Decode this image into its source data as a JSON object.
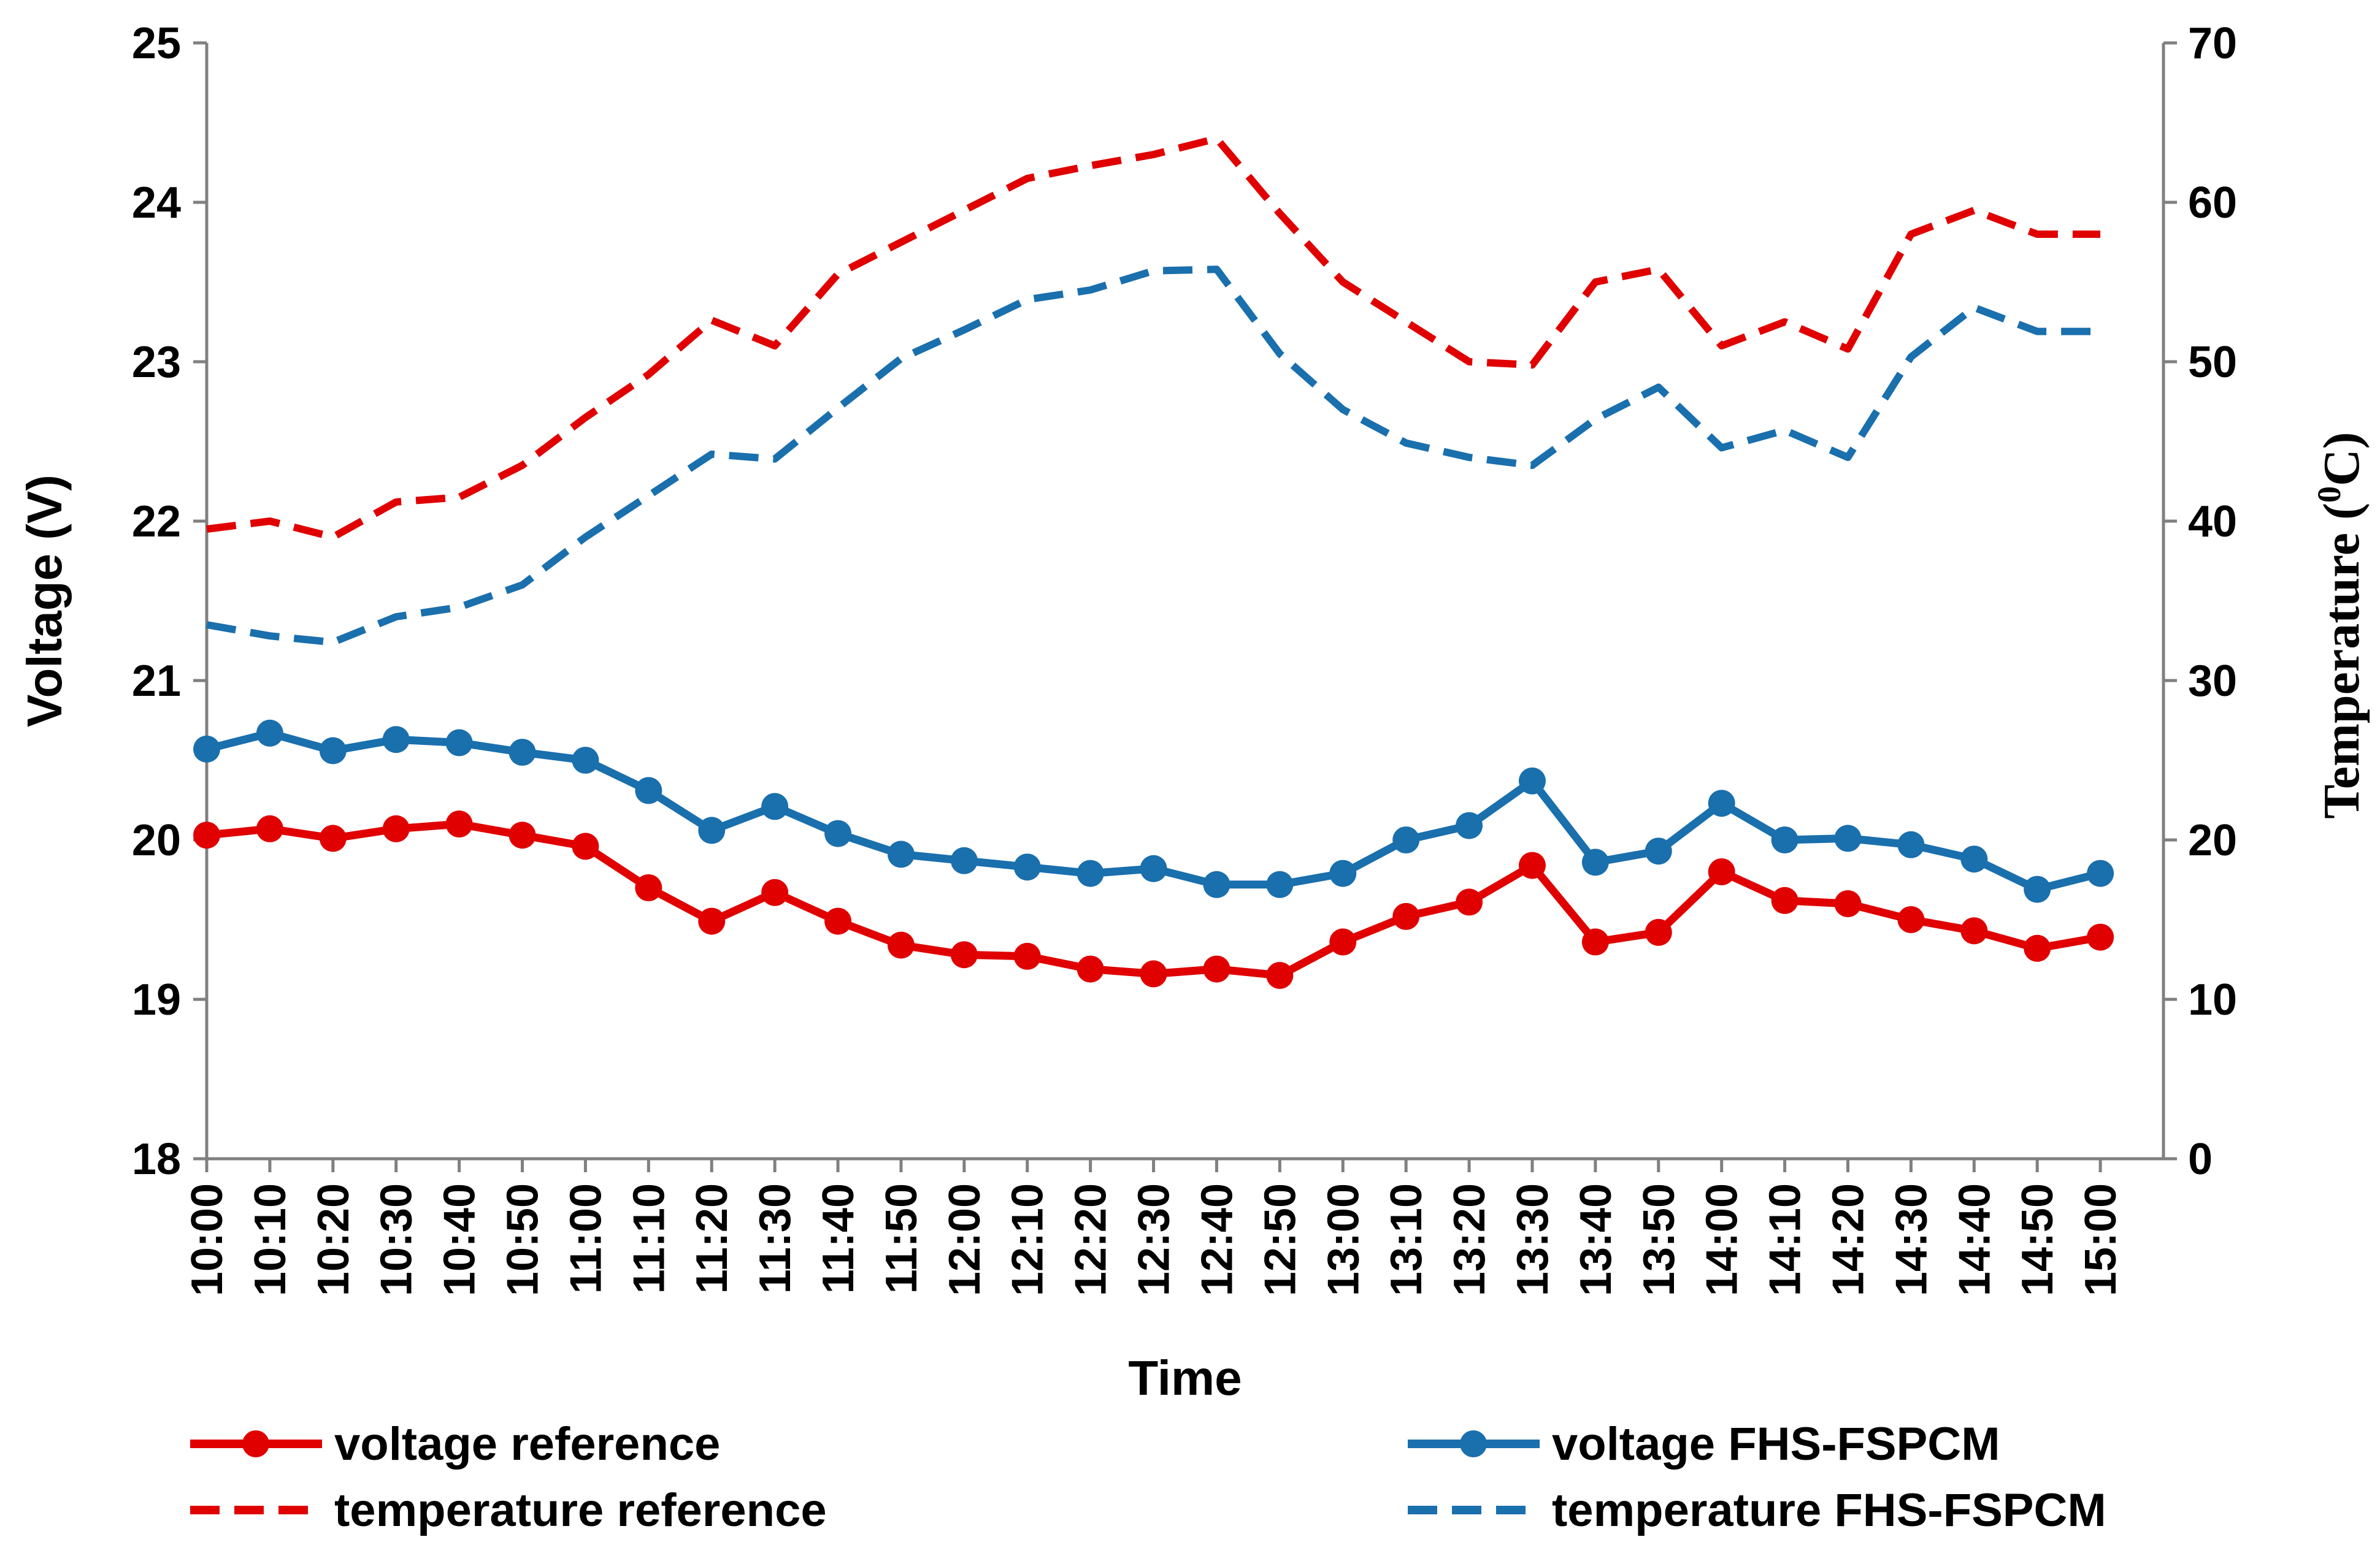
{
  "chart_data": {
    "type": "line",
    "xlabel": "Time",
    "ylabel_left": "Voltage (V)",
    "ylabel_right": "Temperature (0C)",
    "ylabel_right_parts": {
      "before": "Temperature (",
      "sup": "0",
      "after": "C)"
    },
    "ylim_left": [
      18,
      25
    ],
    "ylim_right": [
      0,
      70
    ],
    "yticks_left": [
      18,
      19,
      20,
      21,
      22,
      23,
      24,
      25
    ],
    "yticks_right": [
      0,
      10,
      20,
      30,
      40,
      50,
      60,
      70
    ],
    "grid": false,
    "legend_position": "bottom",
    "categories": [
      "10:00",
      "10:10",
      "10:20",
      "10:30",
      "10:40",
      "10:50",
      "11:00",
      "11:10",
      "11:20",
      "11:30",
      "11:40",
      "11:50",
      "12:00",
      "12:10",
      "12:20",
      "12:30",
      "12:40",
      "12:50",
      "13:00",
      "13:10",
      "13:20",
      "13:30",
      "13:40",
      "13:50",
      "14:00",
      "14:10",
      "14:20",
      "14:30",
      "14:40",
      "14:50",
      "15:00"
    ],
    "series": [
      {
        "name": "voltage reference",
        "axis": "left",
        "style": "solid-marker",
        "color": "#e00000",
        "values": [
          20.03,
          20.07,
          20.01,
          20.07,
          20.1,
          20.03,
          19.96,
          19.7,
          19.49,
          19.67,
          19.49,
          19.34,
          19.28,
          19.27,
          19.19,
          19.16,
          19.19,
          19.15,
          19.36,
          19.52,
          19.61,
          19.84,
          19.36,
          19.42,
          19.8,
          19.62,
          19.6,
          19.5,
          19.43,
          19.32,
          19.39
        ]
      },
      {
        "name": "voltage FHS-FSPCM",
        "axis": "left",
        "style": "solid-marker",
        "color": "#1a6fad",
        "values": [
          20.57,
          20.67,
          20.56,
          20.63,
          20.61,
          20.55,
          20.5,
          20.31,
          20.06,
          20.21,
          20.04,
          19.91,
          19.87,
          19.83,
          19.79,
          19.82,
          19.72,
          19.72,
          19.79,
          20.0,
          20.09,
          20.37,
          19.86,
          19.93,
          20.23,
          20.0,
          20.01,
          19.97,
          19.88,
          19.69,
          19.79
        ]
      },
      {
        "name": "temperature reference",
        "axis": "right",
        "style": "dashed",
        "color": "#e00000",
        "values": [
          39.5,
          40,
          39,
          41.2,
          41.5,
          43.5,
          46.5,
          49.2,
          52.6,
          51,
          55.5,
          57.5,
          59.5,
          61.5,
          62.3,
          63,
          64,
          59.3,
          55,
          52.5,
          50,
          49.8,
          55,
          55.8,
          51,
          52.5,
          50.8,
          58,
          59.5,
          58,
          58
        ]
      },
      {
        "name": "temperature FHS-FSPCM",
        "axis": "right",
        "style": "dashed",
        "color": "#1a6fad",
        "values": [
          33.5,
          32.8,
          32.4,
          34,
          34.6,
          36,
          39,
          41.6,
          44.2,
          43.9,
          47.1,
          50.2,
          52,
          53.9,
          54.5,
          55.7,
          55.8,
          50.5,
          47,
          44.9,
          44,
          43.5,
          46.4,
          48.4,
          44.6,
          45.7,
          44,
          50.3,
          53.4,
          51.9,
          51.9
        ]
      }
    ]
  }
}
